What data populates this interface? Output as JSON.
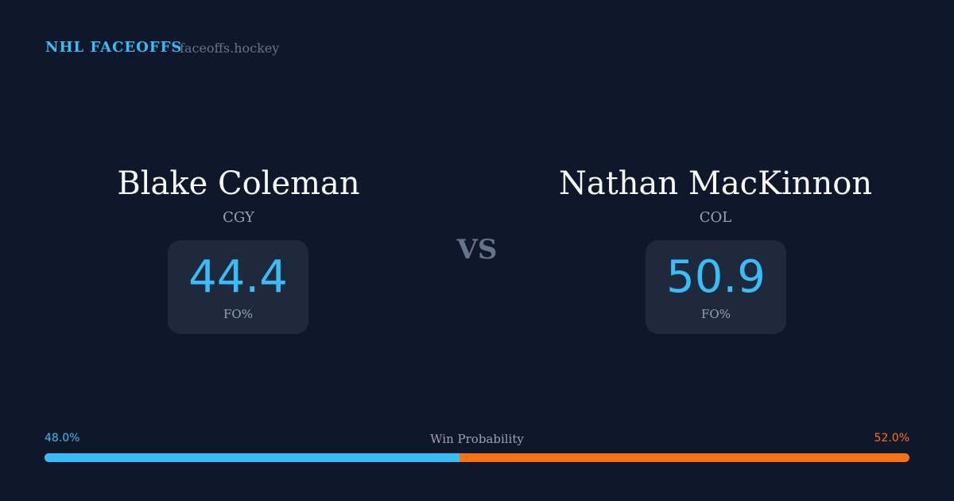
{
  "header": {
    "brand": "NHL FACEOFFS",
    "site": "faceoffs.hockey"
  },
  "players": [
    {
      "name": "Blake Coleman",
      "team": "CGY",
      "fo_pct": "44.4",
      "fo_label": "FO%"
    },
    {
      "name": "Nathan MacKinnon",
      "team": "COL",
      "fo_pct": "50.9",
      "fo_label": "FO%"
    }
  ],
  "vs": "VS",
  "win_probability": {
    "label": "Win Probability",
    "left": "48.0%",
    "right": "52.0%",
    "left_fraction": 0.48,
    "colors": {
      "left": "#38bdf8",
      "right": "#f97316"
    }
  }
}
